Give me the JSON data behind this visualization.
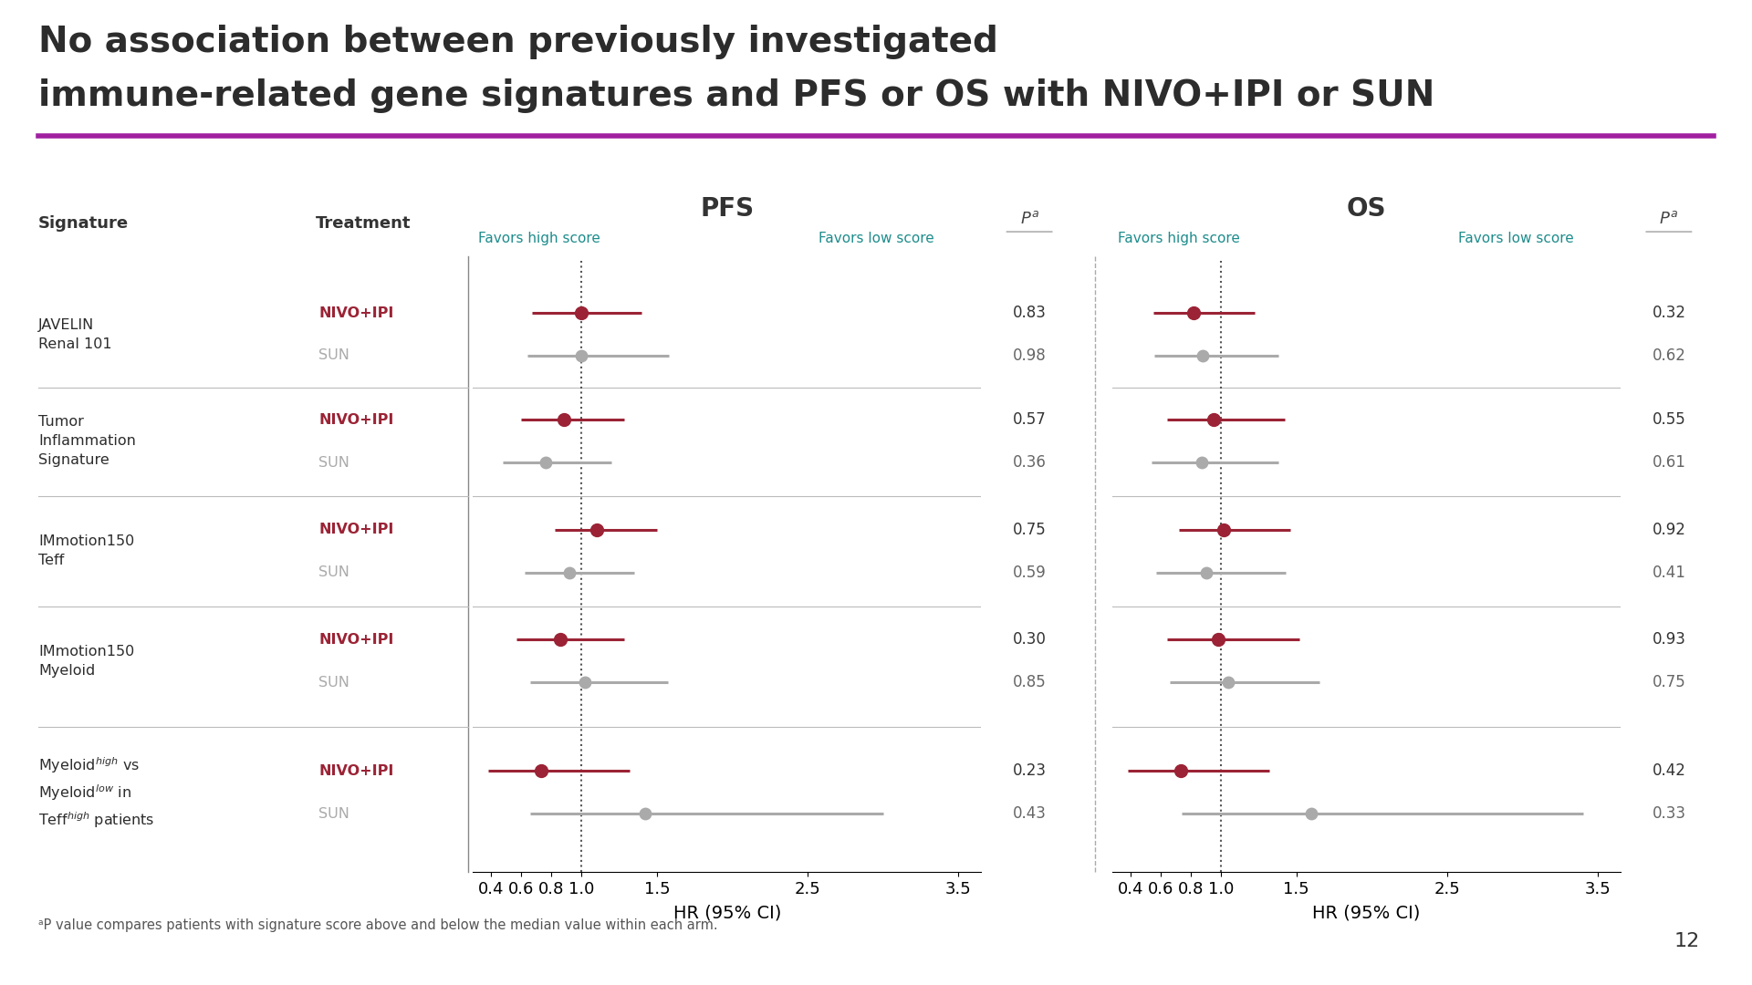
{
  "title_line1": "No association between previously investigated",
  "title_line2": "immune-related gene signatures and PFS or OS with NIVO+IPI or SUN",
  "title_color": "#2C2C2C",
  "title_bar_color": "#A020A0",
  "background_color": "#FFFFFF",
  "nivo_color": "#9B2335",
  "sun_color": "#AAAAAA",
  "teal_color": "#1E8C8C",
  "pfs": {
    "nivo_hr": [
      1.0,
      0.88,
      1.1,
      0.86,
      0.73
    ],
    "nivo_low": [
      0.67,
      0.6,
      0.82,
      0.57,
      0.38
    ],
    "nivo_high": [
      1.4,
      1.28,
      1.5,
      1.28,
      1.32
    ],
    "sun_hr": [
      1.0,
      0.76,
      0.92,
      1.02,
      1.42
    ],
    "sun_low": [
      0.64,
      0.48,
      0.62,
      0.66,
      0.66
    ],
    "sun_high": [
      1.58,
      1.2,
      1.35,
      1.57,
      3.0
    ],
    "pval_nivo": [
      0.83,
      0.57,
      0.75,
      0.3,
      0.23
    ],
    "pval_sun": [
      0.98,
      0.36,
      0.59,
      0.85,
      0.43
    ]
  },
  "os": {
    "nivo_hr": [
      0.82,
      0.95,
      1.02,
      0.98,
      0.73
    ],
    "nivo_low": [
      0.55,
      0.64,
      0.72,
      0.64,
      0.38
    ],
    "nivo_high": [
      1.22,
      1.42,
      1.46,
      1.52,
      1.32
    ],
    "sun_hr": [
      0.88,
      0.87,
      0.9,
      1.05,
      1.6
    ],
    "sun_low": [
      0.56,
      0.54,
      0.57,
      0.66,
      0.74
    ],
    "sun_high": [
      1.38,
      1.38,
      1.43,
      1.65,
      3.4
    ],
    "pval_nivo": [
      0.32,
      0.55,
      0.92,
      0.93,
      0.42
    ],
    "pval_sun": [
      0.62,
      0.61,
      0.41,
      0.75,
      0.33
    ]
  },
  "xticks": [
    0.4,
    0.6,
    0.8,
    1.0,
    1.5,
    2.5,
    3.5
  ],
  "xtick_labels": [
    "0.4",
    "0.6",
    "0.8",
    "1.0",
    "1.5",
    "2.5",
    "3.5"
  ],
  "xlabel": "HR (95% CI)",
  "footnote": "ᵃP value compares patients with signature score above and below the median value within each arm.",
  "page_number": "12"
}
